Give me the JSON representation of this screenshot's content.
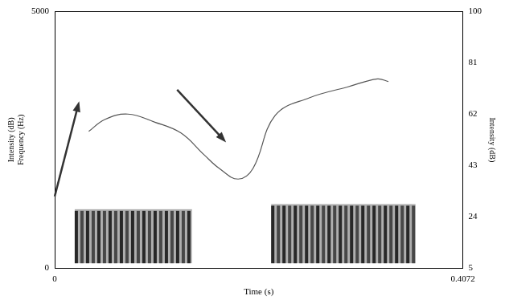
{
  "chart_data": {
    "type": "line",
    "xlabel": "Time (s)",
    "ylabel": [
      "Intensity (dB)",
      "Frequency (Hz)"
    ],
    "y2label": "Intensity (dB)",
    "xlim": [
      0,
      0.4072
    ],
    "xticks": [
      0,
      0.4072
    ],
    "ylim": [
      0,
      5000
    ],
    "yticks": [
      0,
      5000
    ],
    "y2lim": [
      5,
      100
    ],
    "y2ticks": [
      5,
      24,
      43,
      62,
      81,
      100
    ],
    "grid": false,
    "x": [
      0.034,
      0.05,
      0.073,
      0.1,
      0.126,
      0.149,
      0.164,
      0.183,
      0.198,
      0.22,
      0.254,
      0.292,
      0.322,
      0.333
    ],
    "series": [
      {
        "name": "Intensity",
        "axis": "y2",
        "color": "#555555",
        "values": [
          55.6,
          60,
          62,
          59,
          55,
          47,
          42,
          38,
          42,
          61.5,
          68,
          72,
          75,
          74
        ]
      }
    ],
    "voiced_segments": [
      {
        "start": 0.02,
        "end": 0.137,
        "low": 100,
        "high": 1150
      },
      {
        "start": 0.216,
        "end": 0.36,
        "low": 100,
        "high": 1250
      }
    ]
  }
}
